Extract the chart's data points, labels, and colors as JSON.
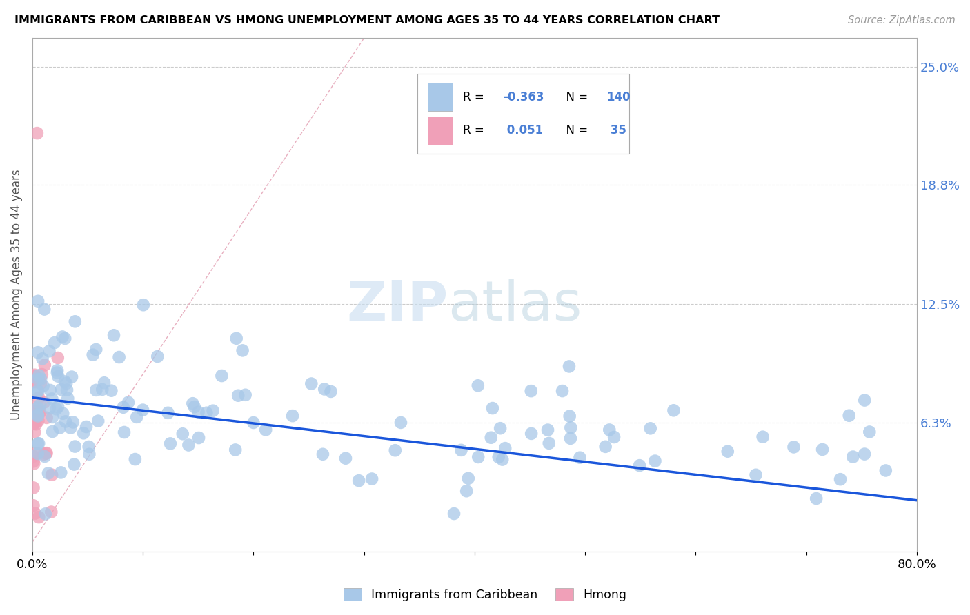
{
  "title": "IMMIGRANTS FROM CARIBBEAN VS HMONG UNEMPLOYMENT AMONG AGES 35 TO 44 YEARS CORRELATION CHART",
  "source": "Source: ZipAtlas.com",
  "ylabel": "Unemployment Among Ages 35 to 44 years",
  "xlim": [
    0.0,
    0.8
  ],
  "ylim": [
    -0.005,
    0.265
  ],
  "yticks": [
    0.063,
    0.125,
    0.188,
    0.25
  ],
  "ytick_labels": [
    "6.3%",
    "12.5%",
    "18.8%",
    "25.0%"
  ],
  "legend_r_caribbean": "-0.363",
  "legend_n_caribbean": "140",
  "legend_r_hmong": "0.051",
  "legend_n_hmong": "35",
  "caribbean_color": "#a8c8e8",
  "hmong_color": "#f0a0b8",
  "trendline_color": "#1a56db",
  "diagonal_color": "#e0b0c0",
  "watermark_zip": "ZIP",
  "watermark_atlas": "atlas",
  "background_color": "#ffffff",
  "trend_x0": 0.0,
  "trend_y0": 0.076,
  "trend_x1": 0.8,
  "trend_y1": 0.022
}
